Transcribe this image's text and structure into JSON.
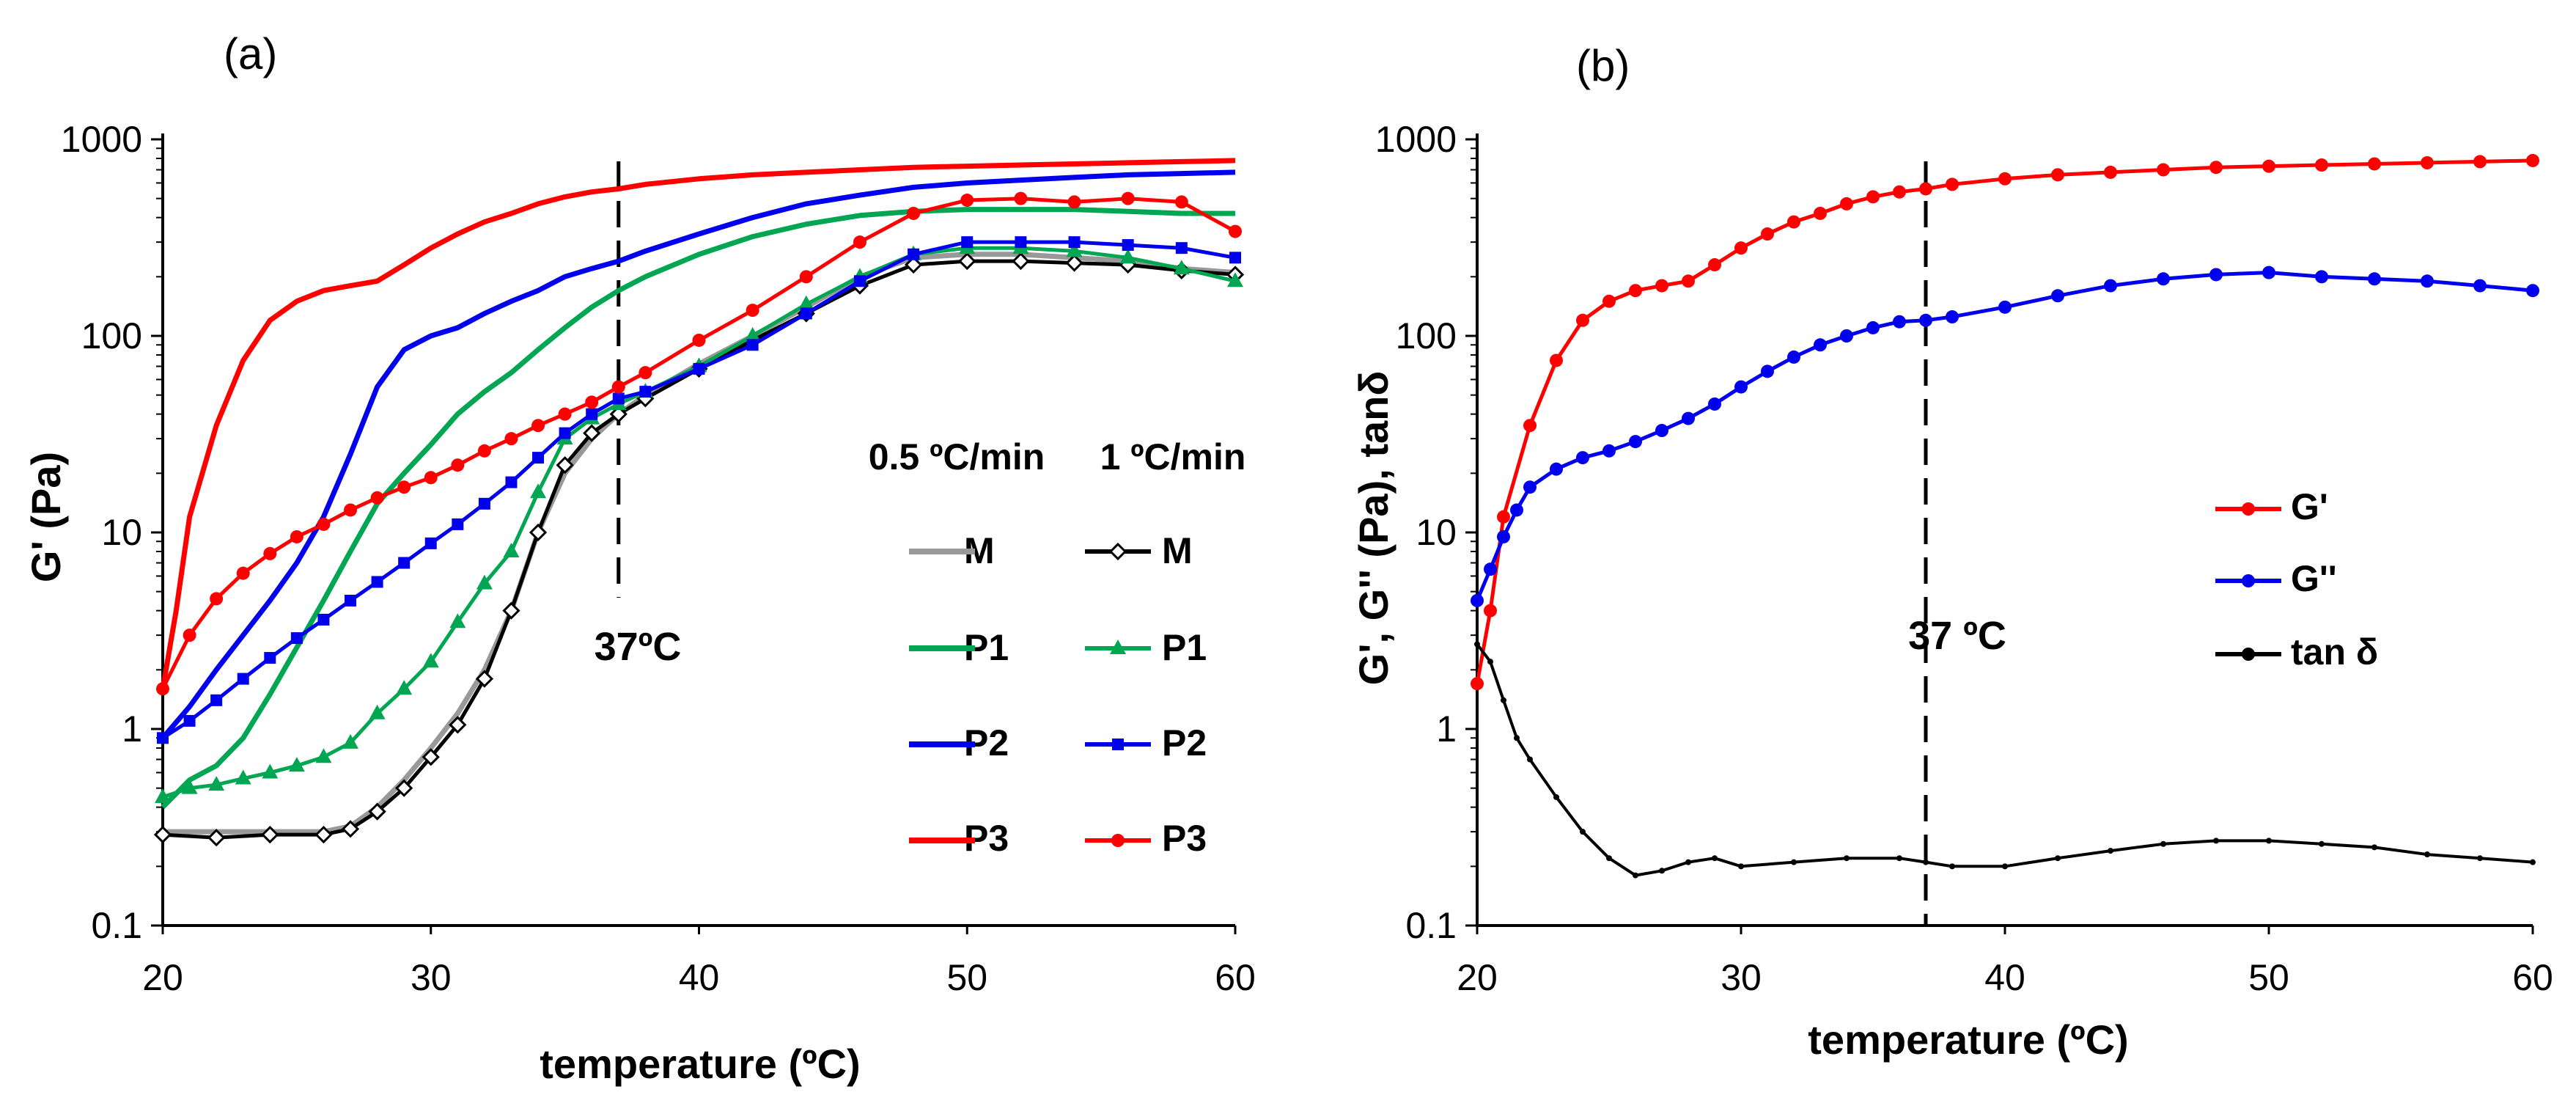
{
  "chart_data": [
    {
      "panel": "(a)",
      "type": "line",
      "xlabel": "temperature (ºC)",
      "ylabel": "G' (Pa)",
      "xlim": [
        20,
        60
      ],
      "ylim": [
        0.1,
        1000
      ],
      "yscale": "log",
      "xticks": [
        "20",
        "30",
        "40",
        "50",
        "60"
      ],
      "yticks": [
        "0.1",
        "1",
        "10",
        "100",
        "1000"
      ],
      "annotation": {
        "text": "37ºC",
        "x": 37
      },
      "legend_headers": [
        "0.5 ºC/min",
        "1 ºC/min"
      ],
      "series": [
        {
          "name": "M",
          "rate": "0.5 ºC/min",
          "color": "#999999",
          "marker": "none",
          "x": [
            20,
            22,
            24,
            26,
            27,
            28,
            29,
            30,
            31,
            32,
            33,
            34,
            35,
            36,
            37,
            38,
            40,
            42,
            44,
            46,
            48,
            50,
            52,
            54,
            56,
            58,
            60
          ],
          "y": [
            0.3,
            0.3,
            0.3,
            0.3,
            0.32,
            0.4,
            0.55,
            0.8,
            1.2,
            2,
            4,
            10,
            20,
            30,
            40,
            50,
            72,
            100,
            140,
            200,
            250,
            260,
            260,
            250,
            240,
            220,
            210
          ]
        },
        {
          "name": "M",
          "rate": "1 ºC/min",
          "color": "#000000",
          "marker": "open-diamond",
          "x": [
            20,
            22,
            24,
            26,
            27,
            28,
            29,
            30,
            31,
            32,
            33,
            34,
            35,
            36,
            37,
            38,
            40,
            42,
            44,
            46,
            48,
            50,
            52,
            54,
            56,
            58,
            60
          ],
          "y": [
            0.29,
            0.28,
            0.29,
            0.29,
            0.31,
            0.38,
            0.5,
            0.72,
            1.05,
            1.8,
            4,
            10,
            22,
            32,
            40,
            48,
            68,
            95,
            130,
            180,
            230,
            240,
            240,
            235,
            230,
            215,
            205
          ]
        },
        {
          "name": "P1",
          "rate": "0.5 ºC/min",
          "color": "#00a651",
          "marker": "none",
          "x": [
            20,
            21,
            22,
            23,
            24,
            25,
            26,
            27,
            28,
            29,
            30,
            31,
            32,
            33,
            34,
            35,
            36,
            37,
            38,
            40,
            42,
            44,
            46,
            48,
            50,
            52,
            54,
            56,
            58,
            60
          ],
          "y": [
            0.4,
            0.55,
            0.65,
            0.9,
            1.5,
            2.6,
            4.5,
            8,
            14,
            20,
            28,
            40,
            52,
            65,
            85,
            110,
            140,
            170,
            200,
            260,
            320,
            370,
            410,
            430,
            440,
            440,
            440,
            430,
            420,
            420
          ]
        },
        {
          "name": "P1",
          "rate": "1 ºC/min",
          "color": "#00a651",
          "marker": "triangle",
          "x": [
            20,
            21,
            22,
            23,
            24,
            25,
            26,
            27,
            28,
            29,
            30,
            31,
            32,
            33,
            34,
            35,
            36,
            37,
            38,
            40,
            42,
            44,
            46,
            48,
            50,
            52,
            54,
            56,
            58,
            60
          ],
          "y": [
            0.45,
            0.5,
            0.52,
            0.56,
            0.6,
            0.65,
            0.72,
            0.85,
            1.2,
            1.6,
            2.2,
            3.5,
            5.5,
            8,
            16,
            30,
            38,
            45,
            52,
            70,
            100,
            145,
            200,
            260,
            280,
            280,
            270,
            250,
            220,
            190
          ]
        },
        {
          "name": "P2",
          "rate": "0.5 ºC/min",
          "color": "#0000ee",
          "marker": "none",
          "x": [
            20,
            21,
            22,
            23,
            24,
            25,
            26,
            27,
            28,
            29,
            30,
            31,
            32,
            33,
            34,
            35,
            36,
            37,
            38,
            40,
            42,
            44,
            46,
            48,
            50,
            52,
            54,
            56,
            58,
            60
          ],
          "y": [
            0.9,
            1.3,
            2,
            3,
            4.5,
            7,
            12,
            25,
            55,
            85,
            100,
            110,
            130,
            150,
            170,
            200,
            220,
            240,
            270,
            330,
            400,
            470,
            520,
            570,
            600,
            620,
            640,
            660,
            670,
            680
          ]
        },
        {
          "name": "P2",
          "rate": "1 ºC/min",
          "color": "#0000ee",
          "marker": "square",
          "x": [
            20,
            21,
            22,
            23,
            24,
            25,
            26,
            27,
            28,
            29,
            30,
            31,
            32,
            33,
            34,
            35,
            36,
            37,
            38,
            40,
            42,
            44,
            46,
            48,
            50,
            52,
            54,
            56,
            58,
            60
          ],
          "y": [
            0.9,
            1.1,
            1.4,
            1.8,
            2.3,
            2.9,
            3.6,
            4.5,
            5.6,
            7,
            8.8,
            11,
            14,
            18,
            24,
            32,
            40,
            48,
            52,
            68,
            90,
            130,
            190,
            260,
            300,
            300,
            300,
            290,
            280,
            250
          ]
        },
        {
          "name": "P3",
          "rate": "0.5 ºC/min",
          "color": "#ff0000",
          "marker": "none",
          "x": [
            20,
            20.5,
            21,
            22,
            23,
            24,
            25,
            26,
            27,
            28,
            29,
            30,
            31,
            32,
            33,
            34,
            35,
            36,
            37,
            38,
            40,
            42,
            44,
            46,
            48,
            50,
            52,
            54,
            56,
            58,
            60
          ],
          "y": [
            1.6,
            4,
            12,
            35,
            75,
            120,
            150,
            170,
            180,
            190,
            230,
            280,
            330,
            380,
            420,
            470,
            510,
            540,
            560,
            590,
            630,
            660,
            680,
            700,
            720,
            730,
            740,
            750,
            760,
            770,
            780
          ]
        },
        {
          "name": "P3",
          "rate": "1 ºC/min",
          "color": "#ff0000",
          "marker": "circle",
          "x": [
            20,
            21,
            22,
            23,
            24,
            25,
            26,
            27,
            28,
            29,
            30,
            31,
            32,
            33,
            34,
            35,
            36,
            37,
            38,
            40,
            42,
            44,
            46,
            48,
            50,
            52,
            54,
            56,
            58,
            60
          ],
          "y": [
            1.6,
            3,
            4.6,
            6.2,
            7.8,
            9.5,
            11,
            13,
            15,
            17,
            19,
            22,
            26,
            30,
            35,
            40,
            46,
            55,
            65,
            95,
            135,
            200,
            300,
            420,
            490,
            500,
            480,
            500,
            480,
            340
          ]
        }
      ]
    },
    {
      "panel": "(b)",
      "type": "line",
      "xlabel": "temperature (ºC)",
      "ylabel": "G', G'' (Pa), tanδ",
      "xlim": [
        20,
        60
      ],
      "ylim": [
        0.1,
        1000
      ],
      "yscale": "log",
      "xticks": [
        "20",
        "30",
        "40",
        "50",
        "60"
      ],
      "yticks": [
        "0.1",
        "1",
        "10",
        "100",
        "1000"
      ],
      "annotation": {
        "text": "37 ºC",
        "x": 37
      },
      "series": [
        {
          "name": "G'",
          "color": "#ff0000",
          "marker": "circle",
          "x": [
            20,
            20.5,
            21,
            22,
            23,
            24,
            25,
            26,
            27,
            28,
            29,
            30,
            31,
            32,
            33,
            34,
            35,
            36,
            37,
            38,
            40,
            42,
            44,
            46,
            48,
            50,
            52,
            54,
            56,
            58,
            60
          ],
          "y": [
            1.7,
            4,
            12,
            35,
            75,
            120,
            150,
            170,
            180,
            190,
            230,
            280,
            330,
            380,
            420,
            470,
            510,
            540,
            560,
            590,
            630,
            660,
            680,
            700,
            720,
            730,
            740,
            750,
            760,
            770,
            780
          ]
        },
        {
          "name": "G''",
          "color": "#0000ee",
          "marker": "circle",
          "x": [
            20,
            20.5,
            21,
            21.5,
            22,
            23,
            24,
            25,
            26,
            27,
            28,
            29,
            30,
            31,
            32,
            33,
            34,
            35,
            36,
            37,
            38,
            40,
            42,
            44,
            46,
            48,
            50,
            52,
            54,
            56,
            58,
            60
          ],
          "y": [
            4.5,
            6.5,
            9.5,
            13,
            17,
            21,
            24,
            26,
            29,
            33,
            38,
            45,
            55,
            66,
            78,
            90,
            100,
            110,
            118,
            120,
            125,
            140,
            160,
            180,
            195,
            205,
            210,
            200,
            195,
            190,
            180,
            170
          ]
        },
        {
          "name": "tan δ",
          "color": "#000000",
          "marker": "small",
          "x": [
            20,
            20.5,
            21,
            21.5,
            22,
            23,
            24,
            25,
            26,
            27,
            28,
            29,
            30,
            32,
            34,
            36,
            37,
            38,
            40,
            42,
            44,
            46,
            48,
            50,
            52,
            54,
            56,
            58,
            60
          ],
          "y": [
            2.7,
            2.2,
            1.4,
            0.9,
            0.7,
            0.45,
            0.3,
            0.22,
            0.18,
            0.19,
            0.21,
            0.22,
            0.2,
            0.21,
            0.22,
            0.22,
            0.21,
            0.2,
            0.2,
            0.22,
            0.24,
            0.26,
            0.27,
            0.27,
            0.26,
            0.25,
            0.23,
            0.22,
            0.21
          ]
        }
      ]
    }
  ]
}
